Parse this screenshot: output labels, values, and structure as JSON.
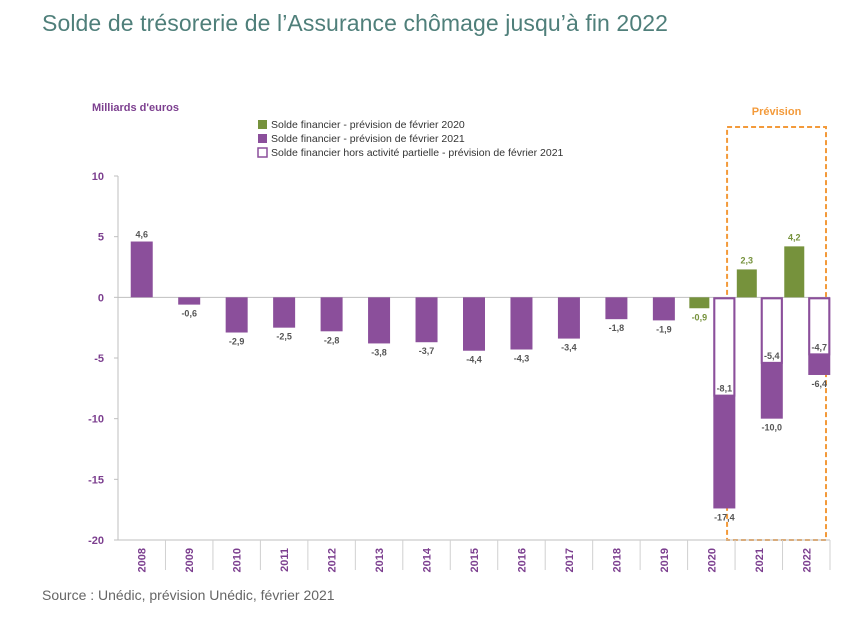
{
  "page": {
    "title": "Solde de trésorerie de l’Assurance chômage jusqu’à fin 2022",
    "source": "Source : Unédic, prévision Unédic, février 2021"
  },
  "colors": {
    "green": "#76923c",
    "purple": "#8b4f9b",
    "axis_text": "#7c3f8f",
    "forecast_box": "#f39a3a",
    "title": "#4f7f7a"
  },
  "chart_data": {
    "type": "bar",
    "ylabel": "Milliards d'euros",
    "ylim": [
      -20,
      10
    ],
    "yticks": [
      10,
      5,
      0,
      -5,
      -10,
      -15,
      -20
    ],
    "grid": false,
    "categories": [
      "2008",
      "2009",
      "2010",
      "2011",
      "2012",
      "2013",
      "2014",
      "2015",
      "2016",
      "2017",
      "2018",
      "2019",
      "2020",
      "2021",
      "2022"
    ],
    "series": [
      {
        "name": "Solde financier - prévision de février 2020",
        "style": "filled-green",
        "values": [
          null,
          null,
          null,
          null,
          null,
          null,
          null,
          null,
          null,
          null,
          null,
          null,
          -0.9,
          2.3,
          4.2
        ],
        "labels": [
          null,
          null,
          null,
          null,
          null,
          null,
          null,
          null,
          null,
          null,
          null,
          null,
          "-0,9",
          "2,3",
          "4,2"
        ]
      },
      {
        "name": "Solde financier - prévision de février 2021",
        "style": "filled-purple",
        "values": [
          4.6,
          -0.6,
          -2.9,
          -2.5,
          -2.8,
          -3.8,
          -3.7,
          -4.4,
          -4.3,
          -3.4,
          -1.8,
          -1.9,
          -17.4,
          -10.0,
          -6.4
        ],
        "labels": [
          "4,6",
          "-0,6",
          "-2,9",
          "-2,5",
          "-2,8",
          "-3,8",
          "-3,7",
          "-4,4",
          "-4,3",
          "-3,4",
          "-1,8",
          "-1,9",
          "-17,4",
          "-10,0",
          "-6,4"
        ]
      },
      {
        "name": "Solde financier hors activité partielle - prévision de février 2021",
        "style": "outline-purple",
        "values": [
          null,
          null,
          null,
          null,
          null,
          null,
          null,
          null,
          null,
          null,
          null,
          null,
          -8.1,
          -5.4,
          -4.7
        ],
        "labels": [
          null,
          null,
          null,
          null,
          null,
          null,
          null,
          null,
          null,
          null,
          null,
          null,
          "-8,1",
          "-5,4",
          "-4,7"
        ]
      }
    ],
    "annotations": [
      {
        "text": "Prévision",
        "categories": [
          "2021",
          "2022"
        ]
      }
    ],
    "legend_position": "top"
  }
}
